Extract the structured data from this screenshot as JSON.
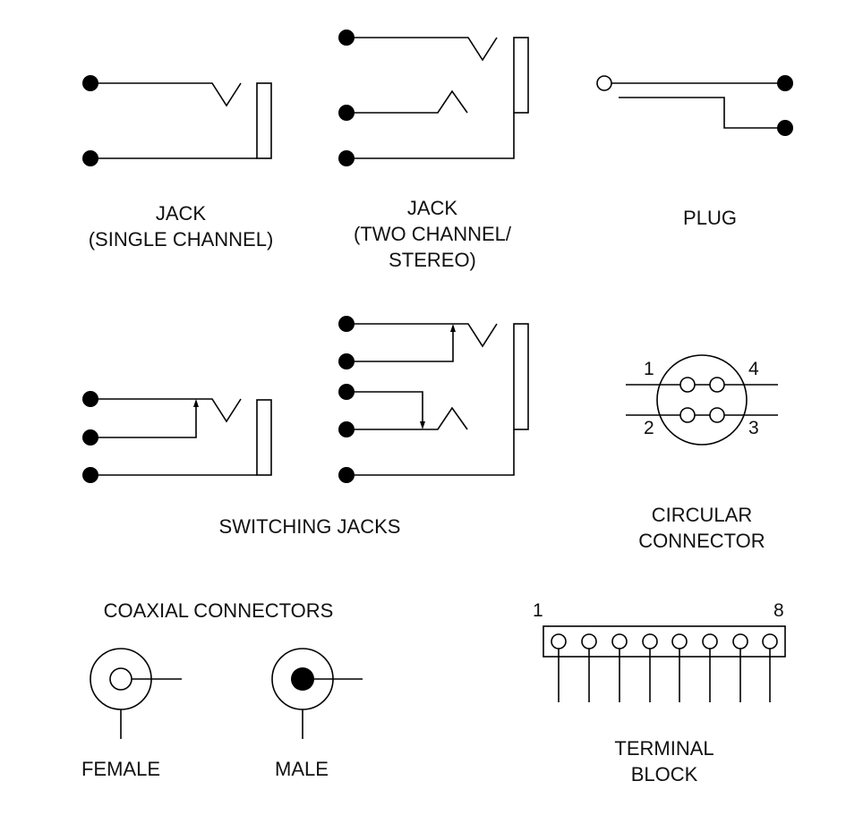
{
  "symbols": {
    "jack_single": {
      "line1": "JACK",
      "line2": "(SINGLE CHANNEL)"
    },
    "jack_stereo": {
      "line1": "JACK",
      "line2": "(TWO CHANNEL/",
      "line3": "STEREO)"
    },
    "plug": {
      "line1": "PLUG"
    },
    "switching_jacks": {
      "line1": "SWITCHING JACKS"
    },
    "circular_connector": {
      "line1": "CIRCULAR",
      "line2": "CONNECTOR",
      "pins": [
        "1",
        "4",
        "2",
        "3"
      ]
    },
    "coaxial": {
      "title": "COAXIAL CONNECTORS",
      "female": "FEMALE",
      "male": "MALE"
    },
    "terminal_block": {
      "line1": "TERMINAL",
      "line2": "BLOCK",
      "first": "1",
      "last": "8"
    }
  }
}
